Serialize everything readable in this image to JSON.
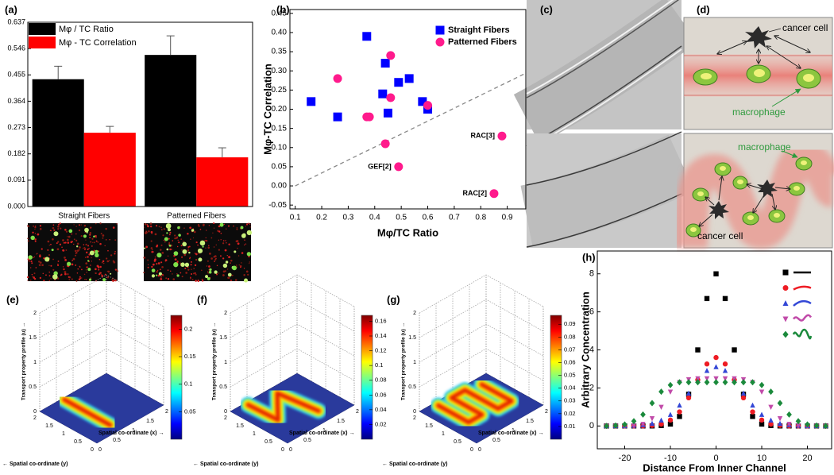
{
  "chart_data": [
    {
      "type": "bar",
      "label": "(a)",
      "categories": [
        "Straight Fibers",
        "Patterned Fibers"
      ],
      "series": [
        {
          "name": "Mφ / TC Ratio",
          "color": "#000000",
          "values": [
            0.44,
            0.524
          ],
          "errors": [
            0.045,
            0.066
          ]
        },
        {
          "name": "Mφ - TC Correlation",
          "color": "#ff0000",
          "values": [
            0.255,
            0.17
          ],
          "errors": [
            0.022,
            0.033
          ]
        }
      ],
      "ylim": [
        0,
        0.637
      ],
      "yticks": [
        {
          "value": 0,
          "label": "0.000"
        },
        0.091,
        0.182,
        0.273,
        0.364,
        0.455,
        0.546,
        0.637
      ],
      "legend": "upper left"
    },
    {
      "type": "scatter",
      "label": "(b)",
      "xlabel": "Mφ/TC Ratio",
      "ylabel": "Mφ-TC Correlation",
      "series": [
        {
          "name": "Straight Fibers",
          "color": "#0000ff",
          "marker": "square",
          "x": [
            0.16,
            0.26,
            0.37,
            0.43,
            0.44,
            0.45,
            0.49,
            0.53,
            0.58,
            0.6
          ],
          "values": [
            0.22,
            0.18,
            0.39,
            0.24,
            0.32,
            0.19,
            0.27,
            0.28,
            0.22,
            0.2
          ]
        },
        {
          "name": "Patterned Fibers",
          "color": "#ff1a8c",
          "marker": "circle",
          "x": [
            0.26,
            0.37,
            0.38,
            0.46,
            0.46,
            0.44,
            0.6,
            0.49,
            0.88,
            0.85
          ],
          "values": [
            0.28,
            0.18,
            0.18,
            0.34,
            0.23,
            0.11,
            0.21,
            0.05,
            0.13,
            -0.02
          ],
          "point_labels": [
            null,
            null,
            null,
            null,
            null,
            null,
            null,
            "GEF[2]",
            "RAC[3]",
            "RAC[2]"
          ]
        }
      ],
      "trend_line": {
        "x": [
          0.1,
          0.97
        ],
        "y": [
          0.0,
          0.294
        ]
      },
      "xlim": [
        0.08,
        0.97
      ],
      "ylim": [
        -0.06,
        0.46
      ],
      "xticks": [
        0.1,
        0.2,
        0.3,
        0.4,
        0.5,
        0.6,
        0.7,
        0.8,
        0.9
      ],
      "yticks": [
        -0.05,
        {
          "value": 0,
          "label": "0.00"
        },
        0.05,
        {
          "value": 0.1,
          "label": "0.10"
        },
        0.15,
        {
          "value": 0.2,
          "label": "0.20"
        },
        0.25,
        {
          "value": 0.3,
          "label": "0.30"
        },
        0.35,
        {
          "value": 0.4,
          "label": "0.40"
        },
        0.45
      ],
      "legend": "upper right"
    },
    {
      "type": "surface",
      "label": "(e)",
      "xlabel": "Spatial co-ordinate (x) →",
      "ylabel": "← Spatial co-ordinate (y)",
      "zlabel": "Transport property profile (u) →",
      "xlim": [
        0,
        2
      ],
      "ylim": [
        0,
        2
      ],
      "zlim": [
        0,
        2
      ],
      "xticks": [
        0,
        0.5,
        1,
        1.5,
        2
      ],
      "yticks": [
        0,
        0.5,
        1,
        1.5,
        2
      ],
      "zticks": [
        0,
        0.5,
        1,
        1.5,
        2
      ],
      "clim": [
        0,
        0.225
      ],
      "cticks": [
        0.05,
        0.1,
        0.15,
        0.2
      ]
    },
    {
      "type": "surface",
      "label": "(f)",
      "xlabel": "Spatial co-ordinate (x) →",
      "ylabel": "← Spatial co-ordinate (y)",
      "zlabel": "Transport property profile (u) →",
      "xlim": [
        0,
        2
      ],
      "ylim": [
        0,
        2
      ],
      "zlim": [
        0,
        2
      ],
      "xticks": [
        0,
        0.5,
        1,
        1.5,
        2
      ],
      "yticks": [
        0,
        0.5,
        1,
        1.5,
        2
      ],
      "zticks": [
        0,
        0.5,
        1,
        1.5,
        2
      ],
      "clim": [
        0,
        0.168
      ],
      "cticks": [
        0.02,
        0.04,
        0.06,
        0.08,
        0.1,
        0.12,
        0.14,
        0.16
      ]
    },
    {
      "type": "surface",
      "label": "(g)",
      "xlabel": "Spatial co-ordinate (x) →",
      "ylabel": "← Spatial co-ordinate (y)",
      "zlabel": "Transport property profile (u) →",
      "xlim": [
        0,
        2
      ],
      "ylim": [
        0,
        2
      ],
      "zlim": [
        0,
        2
      ],
      "xticks": [
        0,
        0.5,
        1,
        1.5,
        2
      ],
      "yticks": [
        0,
        0.5,
        1,
        1.5,
        2
      ],
      "zticks": [
        0,
        0.5,
        1,
        1.5,
        2
      ],
      "clim": [
        0,
        0.097
      ],
      "cticks": [
        0.01,
        0.02,
        0.03,
        0.04,
        0.05,
        0.06,
        0.07,
        0.08,
        0.09
      ]
    },
    {
      "type": "scatter",
      "label": "(h)",
      "xlabel": "Distance From Inner Channel",
      "ylabel": "Arbitrary Concentration",
      "x": [
        -24,
        -22,
        -20,
        -18,
        -16,
        -14,
        -12,
        -10,
        -8,
        -6,
        -4,
        -2,
        0,
        2,
        4,
        6,
        8,
        10,
        12,
        14,
        16,
        18,
        20,
        22,
        24
      ],
      "series": [
        {
          "color": "#000000",
          "marker": "square",
          "values": [
            0,
            0,
            0,
            0,
            0,
            0,
            0.02,
            0.1,
            0.5,
            1.67,
            4.0,
            6.7,
            8.0,
            6.7,
            4.0,
            1.67,
            0.5,
            0.1,
            0.02,
            0,
            0,
            0,
            0,
            0,
            0
          ]
        },
        {
          "color": "#ee1c24",
          "marker": "circle",
          "values": [
            0,
            0,
            0,
            0,
            0,
            0.03,
            0.1,
            0.31,
            0.74,
            1.48,
            2.43,
            3.26,
            3.6,
            3.26,
            2.43,
            1.48,
            0.74,
            0.31,
            0.1,
            0.03,
            0,
            0,
            0,
            0,
            0
          ]
        },
        {
          "color": "#3347d6",
          "marker": "triangle",
          "values": [
            0,
            0,
            0,
            0.02,
            0.05,
            0.12,
            0.29,
            0.59,
            1.08,
            1.71,
            2.38,
            2.9,
            3.1,
            2.9,
            2.38,
            1.71,
            1.08,
            0.59,
            0.29,
            0.12,
            0.05,
            0.02,
            0,
            0,
            0
          ]
        },
        {
          "color": "#c14aa9",
          "marker": "triangle-down",
          "values": [
            0,
            0,
            0,
            0.02,
            0.1,
            0.4,
            1.0,
            1.8,
            2.3,
            2.45,
            2.5,
            2.5,
            2.5,
            2.5,
            2.5,
            2.45,
            2.3,
            1.8,
            1.0,
            0.4,
            0.1,
            0.02,
            0,
            0,
            0
          ]
        },
        {
          "color": "#1b8a3c",
          "marker": "diamond",
          "values": [
            0,
            0.02,
            0.08,
            0.25,
            0.6,
            1.2,
            1.8,
            2.15,
            2.3,
            2.3,
            2.3,
            2.3,
            2.3,
            2.3,
            2.3,
            2.3,
            2.3,
            2.15,
            1.8,
            1.2,
            0.6,
            0.25,
            0.08,
            0.02,
            0
          ]
        }
      ],
      "xlim": [
        -26,
        25.3
      ],
      "ylim": [
        -1.2,
        9.2
      ],
      "xticks": [
        -20,
        -10,
        0,
        10,
        20
      ],
      "yticks": [
        0,
        2,
        4,
        6,
        8
      ],
      "legend": "upper right"
    }
  ],
  "panel_c": {
    "label": "(c)"
  },
  "panel_d": {
    "label": "(d)",
    "top": {
      "cancer_cell": "cancer cell",
      "macrophage": "macrophage"
    },
    "bottom": {
      "macrophage": "macrophage",
      "cancer_cell": "cancer cell"
    }
  }
}
